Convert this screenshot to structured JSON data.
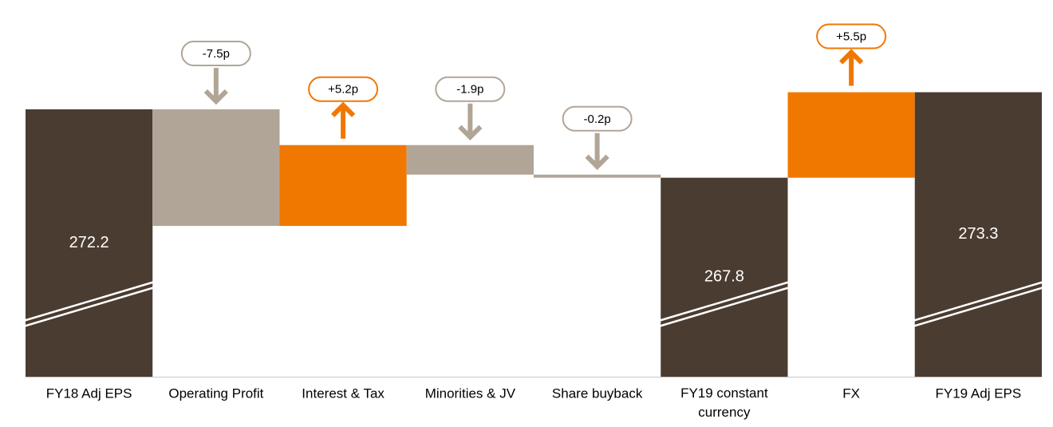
{
  "chart_data": {
    "type": "waterfall",
    "categories": [
      "FY18 Adj EPS",
      "Operating Profit",
      "Interest & Tax",
      "Minorities & JV",
      "Share buyback",
      "FY19 constant currency",
      "FX",
      "FY19 Adj EPS"
    ],
    "values": [
      272.2,
      -7.5,
      5.2,
      -1.9,
      -0.2,
      267.8,
      5.5,
      273.3
    ],
    "value_labels": [
      "272.2",
      "-7.5p",
      "+5.2p",
      "-1.9p",
      "-0.2p",
      "267.8",
      "+5.5p",
      "273.3"
    ],
    "kinds": [
      "total",
      "change",
      "change",
      "change",
      "change",
      "total",
      "change",
      "total"
    ],
    "colors": {
      "total": "#4b3c31",
      "increase": "#f07800",
      "decrease": "#b1a597"
    },
    "ylim": [
      255,
      278
    ],
    "axis_break": true
  }
}
